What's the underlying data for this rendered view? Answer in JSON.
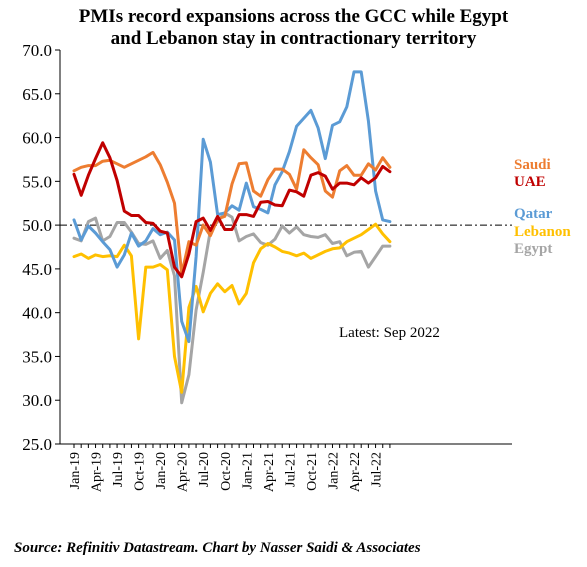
{
  "title_line1": "PMIs record expansions across the GCC while Egypt",
  "title_line2": "and Lebanon stay in contractionary territory",
  "source": "Source: Refinitiv Datastream. Chart by Nasser Saidi & Associates",
  "chart_data": {
    "type": "line",
    "title": "PMIs record expansions across the GCC while Egypt and Lebanon stay in contractionary territory",
    "annotation": "Latest: Sep 2022",
    "ylim": [
      25,
      70
    ],
    "yticks": [
      "25.0",
      "30.0",
      "35.0",
      "40.0",
      "45.0",
      "50.0",
      "55.0",
      "60.0",
      "65.0",
      "70.0"
    ],
    "reference_line": 50,
    "x_tick_labels": [
      "Jan-19",
      "Apr-19",
      "Jul-19",
      "Oct-19",
      "Jan-20",
      "Apr-20",
      "Jul-20",
      "Oct-20",
      "Jan-21",
      "Apr-21",
      "Jul-21",
      "Oct-21",
      "Jan-22",
      "Apr-22",
      "Jul-22"
    ],
    "months": [
      "Jan-19",
      "Feb-19",
      "Mar-19",
      "Apr-19",
      "May-19",
      "Jun-19",
      "Jul-19",
      "Aug-19",
      "Sep-19",
      "Oct-19",
      "Nov-19",
      "Dec-19",
      "Jan-20",
      "Feb-20",
      "Mar-20",
      "Apr-20",
      "May-20",
      "Jun-20",
      "Jul-20",
      "Aug-20",
      "Sep-20",
      "Oct-20",
      "Nov-20",
      "Dec-20",
      "Jan-21",
      "Feb-21",
      "Mar-21",
      "Apr-21",
      "May-21",
      "Jun-21",
      "Jul-21",
      "Aug-21",
      "Sep-21",
      "Oct-21",
      "Nov-21",
      "Dec-21",
      "Jan-22",
      "Feb-22",
      "Mar-22",
      "Apr-22",
      "May-22",
      "Jun-22",
      "Jul-22",
      "Aug-22",
      "Sep-22"
    ],
    "series": [
      {
        "name": "Saudi",
        "color": "#ED7D31",
        "values": [
          56.2,
          56.6,
          56.8,
          56.8,
          57.3,
          57.4,
          57.0,
          56.6,
          57.0,
          57.4,
          57.8,
          58.3,
          56.9,
          54.9,
          52.5,
          44.4,
          48.1,
          47.7,
          50.0,
          48.8,
          50.7,
          51.0,
          54.7,
          57.0,
          57.1,
          53.9,
          53.3,
          55.2,
          56.4,
          56.4,
          55.8,
          54.1,
          58.6,
          57.7,
          56.9,
          53.9,
          53.2,
          56.2,
          56.8,
          55.7,
          55.7,
          57.0,
          56.3,
          57.7,
          56.6
        ]
      },
      {
        "name": "UAE",
        "color": "#C00000",
        "values": [
          55.8,
          53.4,
          55.7,
          57.6,
          59.4,
          57.7,
          55.1,
          51.6,
          51.1,
          51.1,
          50.3,
          50.2,
          49.3,
          49.1,
          45.2,
          44.1,
          46.7,
          50.4,
          50.8,
          49.4,
          51.0,
          49.5,
          49.5,
          51.2,
          51.2,
          51.0,
          52.6,
          52.7,
          52.3,
          52.2,
          54.0,
          53.8,
          53.3,
          55.7,
          56.0,
          55.6,
          54.1,
          54.8,
          54.8,
          54.6,
          55.4,
          54.8,
          55.4,
          56.7,
          56.1
        ]
      },
      {
        "name": "Qatar",
        "color": "#5B9BD5",
        "values": [
          50.6,
          48.3,
          49.9,
          49.1,
          48.1,
          47.2,
          45.2,
          46.6,
          49.1,
          47.6,
          48.2,
          49.6,
          48.9,
          49.2,
          48.3,
          39.0,
          36.7,
          46.4,
          59.8,
          57.2,
          51.2,
          51.4,
          52.2,
          51.7,
          54.8,
          52.1,
          51.8,
          51.4,
          54.6,
          56.1,
          58.4,
          61.3,
          62.2,
          63.1,
          61.1,
          57.6,
          61.4,
          61.8,
          63.5,
          67.5,
          67.5,
          61.9,
          53.9,
          50.6,
          50.4
        ]
      },
      {
        "name": "Lebanon",
        "color": "#FFC000",
        "values": [
          46.4,
          46.7,
          46.2,
          46.6,
          46.4,
          46.5,
          46.4,
          47.7,
          46.5,
          37.0,
          45.2,
          45.2,
          45.5,
          44.9,
          35.0,
          30.9,
          40.6,
          43.0,
          40.1,
          42.2,
          43.3,
          42.4,
          43.1,
          41.0,
          42.2,
          45.7,
          47.3,
          47.9,
          47.5,
          47.0,
          46.8,
          46.5,
          46.8,
          46.2,
          46.6,
          47.0,
          47.3,
          47.4,
          48.1,
          48.5,
          48.9,
          49.5,
          50.1,
          49.0,
          48.1
        ]
      },
      {
        "name": "Egypt",
        "color": "#A5A5A5",
        "values": [
          48.5,
          48.2,
          50.4,
          50.8,
          48.2,
          48.7,
          50.3,
          50.3,
          49.2,
          47.9,
          47.8,
          48.2,
          46.2,
          47.1,
          44.2,
          29.7,
          32.9,
          40.3,
          44.6,
          49.4,
          50.4,
          51.4,
          50.9,
          48.2,
          48.7,
          49.0,
          48.0,
          47.7,
          48.4,
          49.9,
          49.1,
          49.8,
          48.9,
          48.7,
          48.6,
          48.9,
          47.9,
          48.1,
          46.5,
          46.9,
          47.0,
          45.2,
          46.4,
          47.6,
          47.6
        ]
      }
    ]
  }
}
